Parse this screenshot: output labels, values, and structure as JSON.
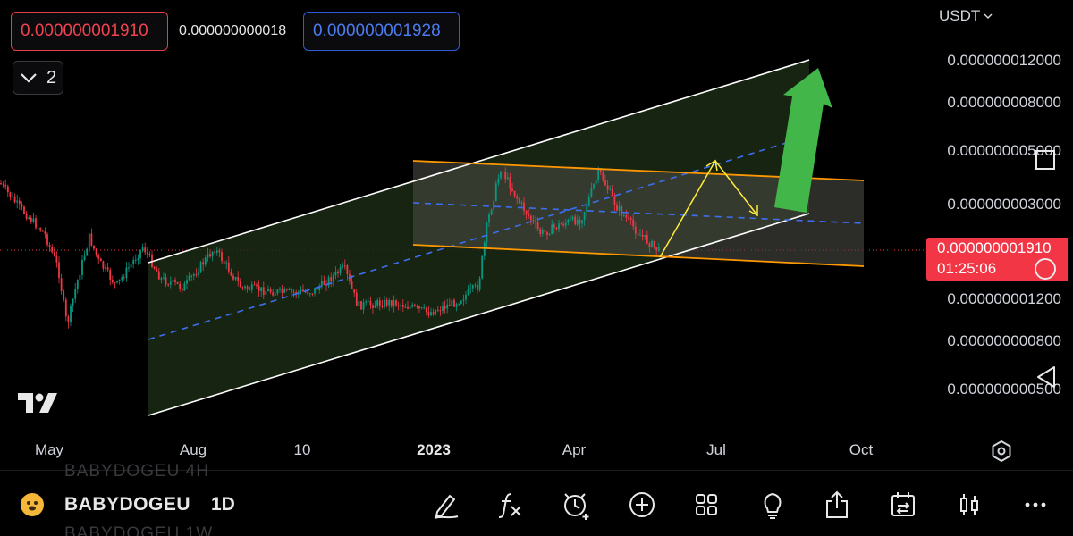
{
  "order_panel": {
    "bid_price": "0.000000001910",
    "spread": "0.000000000018",
    "ask_price": "0.000000001928"
  },
  "layout_toggle": {
    "count": "2"
  },
  "currency": {
    "label": "USDT"
  },
  "price_axis": {
    "labels": [
      "0.000000012000",
      "0.000000008000",
      "0.000000005000",
      "0.000000003000",
      "0.000000001200",
      "0.000000000800",
      "0.000000000500"
    ],
    "scale": "log",
    "levels": [
      12,
      8,
      5,
      3,
      1.2,
      0.8,
      0.5
    ]
  },
  "current_price": {
    "price": "0.000000001910",
    "countdown": "01:25:06"
  },
  "time_axis": {
    "labels": [
      {
        "text": "May",
        "bold": false
      },
      {
        "text": "Aug",
        "bold": false
      },
      {
        "text": "10",
        "bold": false
      },
      {
        "text": "2023",
        "bold": true
      },
      {
        "text": "Apr",
        "bold": false
      },
      {
        "text": "Jul",
        "bold": false
      },
      {
        "text": "Oct",
        "bold": false
      }
    ]
  },
  "symbol_bar": {
    "symbol": "BABYDOGEU",
    "interval": "1D",
    "ghost_above": "BABYDOGEU  4H",
    "ghost_below": "BABYDOGEU  1W"
  },
  "toolbar_icons": [
    "draw-pen-icon",
    "indicators-fx-icon",
    "alert-clock-icon",
    "add-plus-icon",
    "layouts-grid-icon",
    "ideas-bulb-icon",
    "share-icon",
    "replay-calendar-icon",
    "chart-type-candles-icon",
    "more-dots-icon"
  ],
  "colors": {
    "background": "#000000",
    "bid": "#f23645",
    "ask": "#2962ff",
    "up_candle": "#089981",
    "down_candle": "#f23645",
    "channel_line": "#ffffff",
    "channel_fill": "#1b2a14",
    "range_line": "#ff9800",
    "range_fill": "#3a3a34",
    "midline": "#2962ff",
    "projection": "#ffeb3b",
    "arrow": "#4caf50"
  }
}
